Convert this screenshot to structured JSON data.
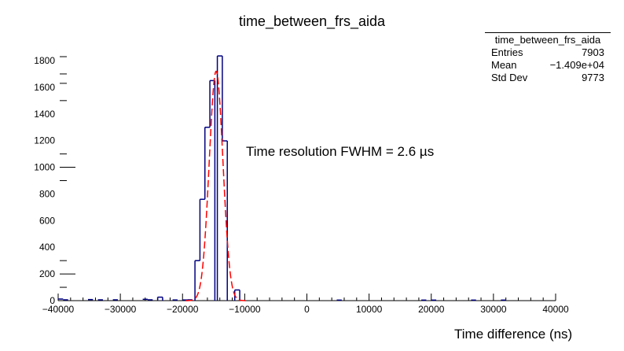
{
  "chart_data": {
    "type": "bar",
    "title": "time_between_frs_aida",
    "xlabel": "Time difference (ns)",
    "ylabel": "",
    "xlim": [
      -40000,
      40000
    ],
    "ylim": [
      0,
      1800
    ],
    "x_ticks": [
      -40000,
      -30000,
      -20000,
      -10000,
      0,
      10000,
      20000,
      30000,
      40000
    ],
    "x_tick_labels": [
      "−40000",
      "−30000",
      "−20000",
      "−10000",
      "0",
      "10000",
      "20000",
      "30000",
      "40000"
    ],
    "y_ticks": [
      0,
      200,
      400,
      600,
      800,
      1000,
      1200,
      1400,
      1600,
      1800
    ],
    "y_tick_labels": [
      "0",
      "200",
      "400",
      "600",
      "800",
      "1000",
      "1200",
      "1400",
      "1600",
      "1800"
    ],
    "grid": false,
    "bin_width": 800,
    "histogram": {
      "name": "time_between_frs_aida",
      "color": "#000080",
      "bins": [
        {
          "x": -40000,
          "count": 12
        },
        {
          "x": -39200,
          "count": 6
        },
        {
          "x": -35200,
          "count": 8
        },
        {
          "x": -33600,
          "count": 6
        },
        {
          "x": -31200,
          "count": 6
        },
        {
          "x": -26400,
          "count": 10
        },
        {
          "x": -25600,
          "count": 6
        },
        {
          "x": -24000,
          "count": 26
        },
        {
          "x": -21600,
          "count": 5
        },
        {
          "x": -20000,
          "count": 5
        },
        {
          "x": -19200,
          "count": 6
        },
        {
          "x": -18000,
          "count": 300
        },
        {
          "x": -17200,
          "count": 760
        },
        {
          "x": -16400,
          "count": 1300
        },
        {
          "x": -15600,
          "count": 1650
        },
        {
          "x": -14400,
          "count": 1835
        },
        {
          "x": -13600,
          "count": 1198
        },
        {
          "x": -11600,
          "count": 80
        },
        {
          "x": 4800,
          "count": 4
        },
        {
          "x": 18400,
          "count": 4
        },
        {
          "x": 20000,
          "count": 4
        },
        {
          "x": 26400,
          "count": 4
        },
        {
          "x": 31200,
          "count": 4
        }
      ]
    },
    "fit": {
      "name": "Gaussian fit",
      "style": "dashed",
      "color": "#ff0000",
      "amplitude": 1720,
      "mean": -14600,
      "sigma": 1104,
      "range": [
        -19500,
        -9500
      ]
    },
    "stats_box": {
      "title": "time_between_frs_aida",
      "entries": "7903",
      "mean": "−1.409e+04",
      "std_dev": "9773"
    },
    "annotation": "Time resolution FWHM = 2.6 µs"
  },
  "stats": {
    "title": "time_between_frs_aida",
    "rows": [
      {
        "label": "Entries",
        "value": "7903"
      },
      {
        "label": "Mean",
        "value": "−1.409e+04"
      },
      {
        "label": "Std Dev",
        "value": "9773"
      }
    ]
  },
  "labels": {
    "title": "time_between_frs_aida",
    "annotation": "Time resolution FWHM = 2.6 µs",
    "xlabel": "Time difference (ns)"
  }
}
